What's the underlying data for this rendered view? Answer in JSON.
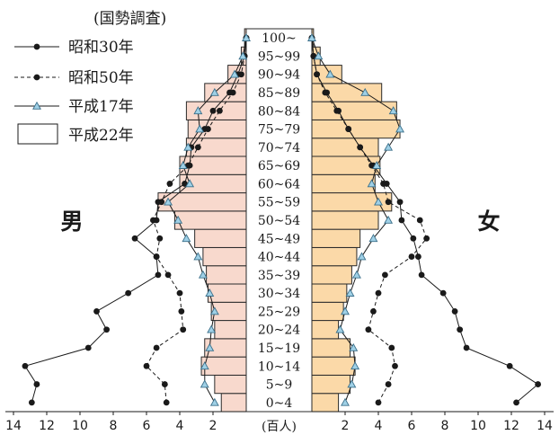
{
  "chart_data": {
    "type": "bar",
    "title": "",
    "legend": {
      "title": "(国勢調査)",
      "placement": "top-left",
      "entries": [
        {
          "key": "s30",
          "label": "昭和30年",
          "style": "line-dot-solid"
        },
        {
          "key": "s50",
          "label": "昭和50年",
          "style": "line-dot-dashed"
        },
        {
          "key": "h17",
          "label": "平成17年",
          "style": "line-triangle-solid"
        },
        {
          "key": "h22",
          "label": "平成22年",
          "style": "bar"
        }
      ]
    },
    "side_labels": {
      "left": "男",
      "right": "女"
    },
    "unit_label": "(百人)",
    "x_ticks": [
      14,
      12,
      10,
      8,
      6,
      4,
      2
    ],
    "x_range": [
      0,
      14
    ],
    "age_groups": [
      "0~4",
      "5~9",
      "10~14",
      "15~19",
      "20~24",
      "25~29",
      "30~34",
      "35~39",
      "40~44",
      "45~49",
      "50~54",
      "55~59",
      "60~64",
      "65~69",
      "70~74",
      "75~79",
      "80~84",
      "85~89",
      "90~94",
      "95~99",
      "100~"
    ],
    "series": {
      "male": {
        "h22": [
          1.5,
          1.9,
          2.7,
          2.5,
          1.9,
          2.1,
          2.3,
          2.4,
          2.6,
          3.1,
          4.3,
          5.3,
          4.0,
          4.0,
          3.6,
          3.5,
          3.6,
          2.5,
          1.1,
          0.3,
          0.1
        ],
        "s30": [
          12.9,
          12.6,
          13.3,
          9.5,
          8.4,
          9.0,
          7.1,
          5.3,
          5.4,
          6.7,
          5.4,
          5.3,
          3.7,
          3.4,
          3.3,
          2.5,
          2.0,
          1.0,
          0.5,
          0.1,
          0.0
        ],
        "s50": [
          4.8,
          4.9,
          6.0,
          5.4,
          3.8,
          3.9,
          4.0,
          4.7,
          5.4,
          5.2,
          5.6,
          5.1,
          4.6,
          3.5,
          2.9,
          2.3,
          1.6,
          0.8,
          0.3,
          0.1,
          0.0
        ],
        "h17": [
          1.9,
          2.5,
          2.5,
          2.2,
          2.1,
          1.9,
          2.2,
          2.6,
          2.9,
          3.6,
          4.1,
          4.7,
          3.4,
          3.8,
          3.5,
          2.8,
          2.9,
          1.9,
          0.7,
          0.2,
          0.0
        ]
      },
      "female": {
        "h22": [
          1.6,
          2.3,
          2.6,
          2.3,
          1.6,
          1.9,
          2.1,
          2.4,
          2.7,
          2.9,
          4.0,
          4.8,
          3.8,
          4.1,
          4.0,
          5.3,
          5.1,
          4.2,
          1.8,
          0.5,
          0.1
        ],
        "s30": [
          12.3,
          13.6,
          11.9,
          9.3,
          8.9,
          8.6,
          7.9,
          6.6,
          6.4,
          6.1,
          5.4,
          5.3,
          4.5,
          3.7,
          2.9,
          2.2,
          1.6,
          0.9,
          0.3,
          0.1,
          0.0
        ],
        "s50": [
          4.0,
          4.6,
          5.0,
          4.8,
          3.4,
          3.7,
          4.0,
          4.4,
          6.0,
          6.9,
          6.5,
          4.6,
          4.3,
          3.6,
          2.9,
          2.2,
          1.5,
          0.8,
          0.3,
          0.1,
          0.0
        ],
        "h17": [
          2.0,
          2.4,
          2.6,
          2.5,
          1.7,
          2.0,
          2.3,
          2.7,
          3.0,
          3.7,
          4.6,
          4.0,
          3.6,
          3.9,
          4.6,
          5.3,
          4.9,
          3.2,
          1.1,
          0.4,
          0.0
        ]
      }
    }
  },
  "colors": {
    "male_bar": "#f8d9cd",
    "female_bar": "#fbd9a8",
    "bar_stroke": "#2a2a2a",
    "line": "#1a1a1a",
    "triangle_fill": "#9fd0e6",
    "triangle_stroke": "#3a6f8a",
    "center_bg": "#ffffff"
  }
}
